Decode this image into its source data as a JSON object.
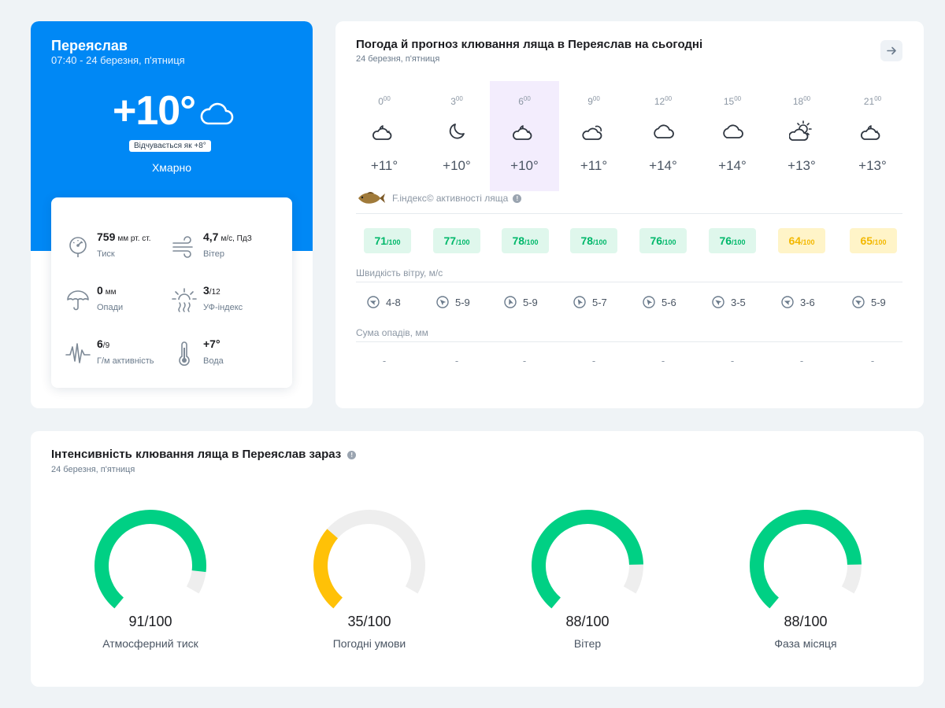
{
  "current": {
    "city": "Переяслав",
    "datetime": "07:40 - 24 березня, п'ятниця",
    "temp": "+10°",
    "icon": "cloud-icon",
    "feels_like": "Відчувається як +8°",
    "condition": "Хмарно",
    "params": [
      {
        "name": "pressure",
        "value": "759",
        "unit": "мм рт. ст.",
        "label": "Тиск",
        "icon": "barometer-icon"
      },
      {
        "name": "wind",
        "value": "4,7",
        "unit": "м/с, ПдЗ",
        "label": "Вітер",
        "icon": "wind-icon"
      },
      {
        "name": "precip",
        "value": "0",
        "unit": "мм",
        "label": "Опади",
        "icon": "umbrella-icon"
      },
      {
        "name": "uv",
        "value": "3",
        "unit": "/12",
        "label": "УФ-індекс",
        "icon": "uv-sun-icon"
      },
      {
        "name": "geomagnetic",
        "value": "6",
        "unit": "/9",
        "label": "Г/м активність",
        "icon": "pulse-icon"
      },
      {
        "name": "water",
        "value": "+7°",
        "unit": "",
        "label": "Вода",
        "icon": "thermometer-icon"
      }
    ]
  },
  "forecast": {
    "title": "Погода й прогноз клювання ляща в Переяслав на сьогодні",
    "subtitle": "24 березня, п'ятниця",
    "hour_suffix": "00",
    "hours": [
      {
        "hour": "0",
        "temp": "+11°",
        "icon": "cloud-moon-icon",
        "index": "71",
        "level": "g",
        "wind": "4-8",
        "rain": "-"
      },
      {
        "hour": "3",
        "temp": "+10°",
        "icon": "moon-icon",
        "index": "77",
        "level": "g",
        "wind": "5-9",
        "rain": "-"
      },
      {
        "hour": "6",
        "temp": "+10°",
        "icon": "cloud-moon-icon",
        "index": "78",
        "level": "g",
        "wind": "5-9",
        "rain": "-"
      },
      {
        "hour": "9",
        "temp": "+11°",
        "icon": "cloud-sun-icon",
        "index": "78",
        "level": "g",
        "wind": "5-7",
        "rain": "-"
      },
      {
        "hour": "12",
        "temp": "+14°",
        "icon": "cloud-icon",
        "index": "76",
        "level": "g",
        "wind": "5-6",
        "rain": "-"
      },
      {
        "hour": "15",
        "temp": "+14°",
        "icon": "cloud-icon",
        "index": "76",
        "level": "g",
        "wind": "3-5",
        "rain": "-"
      },
      {
        "hour": "18",
        "temp": "+13°",
        "icon": "sun-cloud-icon",
        "index": "64",
        "level": "y",
        "wind": "3-6",
        "rain": "-"
      },
      {
        "hour": "21",
        "temp": "+13°",
        "icon": "cloud-moon-icon",
        "index": "65",
        "level": "y",
        "wind": "5-9",
        "rain": "-"
      }
    ],
    "active_hour": "6",
    "index_label": "F.індекс© активності ляща",
    "index_max": "/100",
    "wind_label": "Швидкість вітру, м/с",
    "rain_label": "Сума опадів, мм"
  },
  "intensity": {
    "title": "Інтенсивність клювання ляща в Переяслав зараз",
    "subtitle": "24 березня, п'ятниця",
    "gauges": [
      {
        "value": 91,
        "display": "91/100",
        "label": "Атмосферний тиск",
        "color": "#00d084"
      },
      {
        "value": 35,
        "display": "35/100",
        "label": "Погодні умови",
        "color": "#ffc107"
      },
      {
        "value": 88,
        "display": "88/100",
        "label": "Вітер",
        "color": "#00d084"
      },
      {
        "value": 88,
        "display": "88/100",
        "label": "Фаза місяця",
        "color": "#00d084"
      }
    ]
  }
}
